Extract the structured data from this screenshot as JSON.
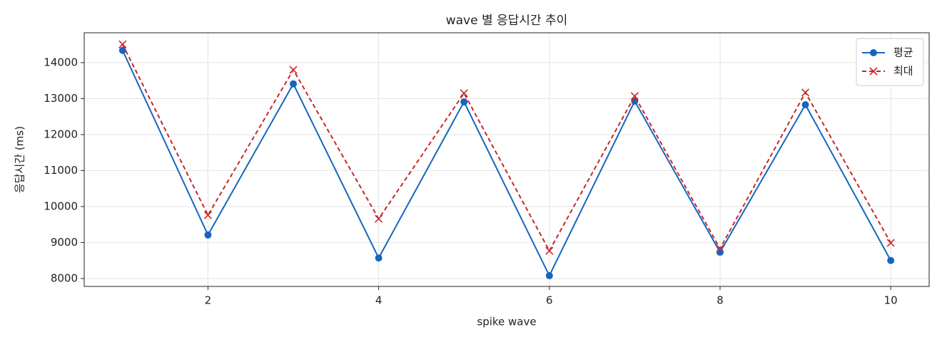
{
  "chart_data": {
    "type": "line",
    "title": "wave 별 응답시간 추이",
    "x_label": "spike wave",
    "y_label": "응답시간 (ms)",
    "x": [
      1,
      2,
      3,
      4,
      5,
      6,
      7,
      8,
      9,
      10
    ],
    "series": [
      {
        "name": "평균",
        "color": "#1565c0",
        "marker": "o",
        "linestyle": "solid",
        "values": [
          14340,
          9210,
          13410,
          8570,
          12910,
          8080,
          12930,
          8730,
          12830,
          8500
        ]
      },
      {
        "name": "최대",
        "color": "#c62828",
        "marker": "x",
        "linestyle": "dashed",
        "values": [
          14510,
          9760,
          13800,
          9660,
          13150,
          8770,
          13070,
          8830,
          13170,
          8990
        ]
      }
    ],
    "xlim": [
      0.55,
      10.45
    ],
    "xticks": [
      2,
      4,
      6,
      8,
      10
    ],
    "ylim": [
      7780,
      14830
    ],
    "yticks": [
      8000,
      9000,
      10000,
      11000,
      12000,
      13000,
      14000
    ],
    "grid": true,
    "legend": "upper right"
  }
}
